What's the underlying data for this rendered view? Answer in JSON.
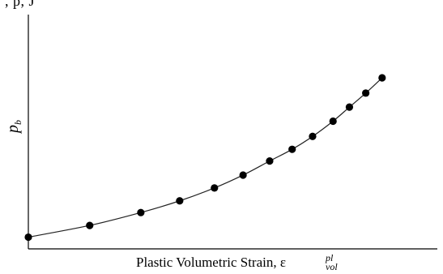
{
  "header_fragment": ", p, J",
  "chart_data": {
    "type": "line",
    "title": "",
    "xlabel": "Plastic Volumetric Strain, ",
    "xlabel_symbol": "ε",
    "xlabel_superscript": "pl",
    "xlabel_subscript": "vol",
    "ylabel_symbol": "p",
    "ylabel_subscript": "b",
    "xlim": [
      0,
      1
    ],
    "ylim": [
      0,
      1
    ],
    "grid": false,
    "legend": "none",
    "series": [
      {
        "x": [
          0.0,
          0.15,
          0.275,
          0.37,
          0.455,
          0.525,
          0.59,
          0.645,
          0.695,
          0.745,
          0.785,
          0.825,
          0.865
        ],
        "y": [
          0.05,
          0.1,
          0.155,
          0.205,
          0.26,
          0.315,
          0.375,
          0.425,
          0.48,
          0.545,
          0.605,
          0.665,
          0.73
        ]
      }
    ],
    "colors": {
      "axis": "#000000",
      "curve": "#222222",
      "marker": "#000000"
    }
  }
}
